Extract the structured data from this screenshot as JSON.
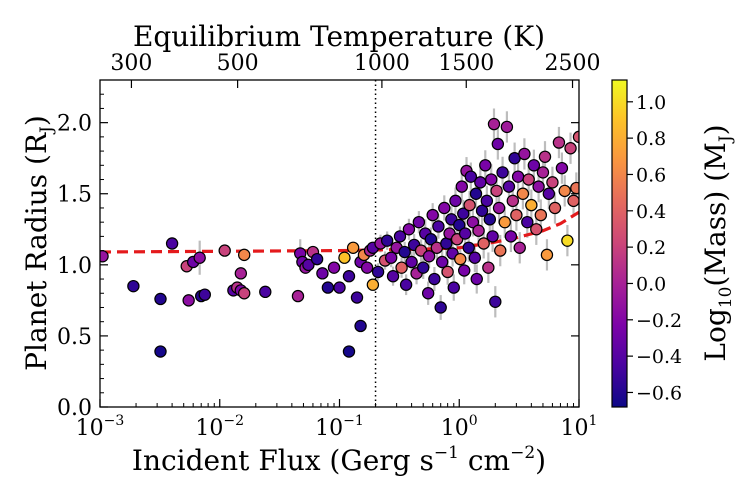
{
  "chart_data": {
    "type": "scatter",
    "title": "",
    "xlabel": "Incident Flux (Gerg s",
    "xlabel_sup1": "−1",
    "xlabel_mid": " cm",
    "xlabel_sup2": "−2",
    "xlabel_end": ")",
    "ylabel": "Planet Radius (R",
    "ylabel_sub": "J",
    "ylabel_end": ")",
    "top_xlabel": "Equilibrium Temperature (K)",
    "colorbar_label": "Log",
    "colorbar_label_sub": "10",
    "colorbar_label_mid": "(Mass) (M",
    "colorbar_label_sub2": "J",
    "colorbar_label_end": ")",
    "x_scale": "log",
    "xlim": [
      0.001,
      10
    ],
    "ylim": [
      0.0,
      2.3
    ],
    "x_ticks": [
      {
        "value": 0.001,
        "base": "10",
        "exp": "−3"
      },
      {
        "value": 0.01,
        "base": "10",
        "exp": "−2"
      },
      {
        "value": 0.1,
        "base": "10",
        "exp": "−1"
      },
      {
        "value": 1,
        "base": "10",
        "exp": "0"
      },
      {
        "value": 10,
        "base": "10",
        "exp": "1"
      }
    ],
    "y_ticks": [
      "0.0",
      "0.5",
      "1.0",
      "1.5",
      "2.0"
    ],
    "top_ticks": [
      {
        "label": "300",
        "flux": 0.00183
      },
      {
        "label": "500",
        "flux": 0.0141
      },
      {
        "label": "1000",
        "flux": 0.226
      },
      {
        "label": "1500",
        "flux": 1.1443
      },
      {
        "label": "2500",
        "flux": 8.829
      }
    ],
    "colorbar_range": [
      -0.68,
      1.12
    ],
    "colorbar_ticks": [
      "−0.6",
      "−0.4",
      "−0.2",
      "0.0",
      "0.2",
      "0.4",
      "0.6",
      "0.8",
      "1.0"
    ],
    "colormap": "plasma",
    "vertical_line": {
      "x": 0.2,
      "style": "dotted",
      "color": "#000000"
    },
    "fit_curve": {
      "color": "#e41a1c",
      "style": "dashed",
      "x": [
        0.001,
        0.01,
        0.1,
        0.2,
        0.5,
        1,
        2,
        3,
        5,
        7,
        10
      ],
      "y": [
        1.09,
        1.095,
        1.1,
        1.105,
        1.11,
        1.12,
        1.16,
        1.19,
        1.24,
        1.29,
        1.37
      ]
    },
    "points": [
      {
        "x": 0.00105,
        "y": 1.06,
        "c": -0.1
      },
      {
        "x": 0.0019,
        "y": 0.85,
        "c": -0.55
      },
      {
        "x": 0.0032,
        "y": 0.76,
        "c": -0.6
      },
      {
        "x": 0.0032,
        "y": 0.39,
        "c": -0.65
      },
      {
        "x": 0.004,
        "y": 1.15,
        "c": -0.45
      },
      {
        "x": 0.0053,
        "y": 0.99,
        "c": 0.2
      },
      {
        "x": 0.0055,
        "y": 0.75,
        "c": -0.15
      },
      {
        "x": 0.006,
        "y": 1.02,
        "c": -0.3
      },
      {
        "x": 0.0068,
        "y": 1.05,
        "c": -0.15,
        "e": 0.12
      },
      {
        "x": 0.007,
        "y": 0.78,
        "c": -0.6
      },
      {
        "x": 0.0075,
        "y": 0.79,
        "c": -0.5
      },
      {
        "x": 0.011,
        "y": 1.1,
        "c": 0.2
      },
      {
        "x": 0.013,
        "y": 0.82,
        "c": -0.4
      },
      {
        "x": 0.014,
        "y": 0.84,
        "c": 0.1
      },
      {
        "x": 0.015,
        "y": 0.94,
        "c": 0.0
      },
      {
        "x": 0.015,
        "y": 0.82,
        "c": -0.2
      },
      {
        "x": 0.016,
        "y": 1.07,
        "c": 0.6
      },
      {
        "x": 0.016,
        "y": 0.8,
        "c": 0.2
      },
      {
        "x": 0.024,
        "y": 0.81,
        "c": -0.45
      },
      {
        "x": 0.045,
        "y": 0.78,
        "c": 0.0
      },
      {
        "x": 0.047,
        "y": 1.08,
        "c": -0.25,
        "e": 0.1
      },
      {
        "x": 0.049,
        "y": 1.02,
        "c": -0.3
      },
      {
        "x": 0.052,
        "y": 0.98,
        "c": -0.1
      },
      {
        "x": 0.055,
        "y": 1.0,
        "c": -0.4
      },
      {
        "x": 0.06,
        "y": 1.09,
        "c": 0.1
      },
      {
        "x": 0.065,
        "y": 1.04,
        "c": -0.55
      },
      {
        "x": 0.072,
        "y": 0.94,
        "c": -0.3
      },
      {
        "x": 0.08,
        "y": 0.84,
        "c": -0.6
      },
      {
        "x": 0.09,
        "y": 0.98,
        "c": -0.2
      },
      {
        "x": 0.1,
        "y": 0.84,
        "c": -0.45
      },
      {
        "x": 0.11,
        "y": 1.05,
        "c": 0.9
      },
      {
        "x": 0.12,
        "y": 0.39,
        "c": -0.65
      },
      {
        "x": 0.12,
        "y": 0.92,
        "c": -0.5
      },
      {
        "x": 0.13,
        "y": 1.12,
        "c": 0.7
      },
      {
        "x": 0.14,
        "y": 0.77,
        "c": -0.5
      },
      {
        "x": 0.15,
        "y": 0.57,
        "c": -0.6
      },
      {
        "x": 0.15,
        "y": 1.02,
        "c": -0.3
      },
      {
        "x": 0.16,
        "y": 1.07,
        "c": 0.6
      },
      {
        "x": 0.17,
        "y": 0.98,
        "c": -0.2
      },
      {
        "x": 0.18,
        "y": 1.1,
        "c": 0.0
      },
      {
        "x": 0.19,
        "y": 0.86,
        "c": 0.8
      },
      {
        "x": 0.19,
        "y": 1.12,
        "c": -0.4
      },
      {
        "x": 0.21,
        "y": 0.95,
        "c": -0.55
      },
      {
        "x": 0.22,
        "y": 1.15,
        "c": -0.1
      },
      {
        "x": 0.24,
        "y": 1.03,
        "c": 0.3
      },
      {
        "x": 0.25,
        "y": 1.17,
        "c": -0.55
      },
      {
        "x": 0.27,
        "y": 1.05,
        "c": -0.25
      },
      {
        "x": 0.28,
        "y": 0.92,
        "c": -0.4
      },
      {
        "x": 0.3,
        "y": 1.12,
        "c": -0.1
      },
      {
        "x": 0.32,
        "y": 1.2,
        "c": -0.45
      },
      {
        "x": 0.33,
        "y": 0.98,
        "c": 0.4
      },
      {
        "x": 0.35,
        "y": 1.09,
        "c": -0.6
      },
      {
        "x": 0.36,
        "y": 0.86,
        "c": -0.45
      },
      {
        "x": 0.38,
        "y": 1.25,
        "c": -0.2
      },
      {
        "x": 0.4,
        "y": 1.02,
        "c": -0.35
      },
      {
        "x": 0.42,
        "y": 1.14,
        "c": -0.5
      },
      {
        "x": 0.44,
        "y": 0.94,
        "c": 0.0
      },
      {
        "x": 0.46,
        "y": 1.3,
        "c": -0.3
      },
      {
        "x": 0.48,
        "y": 1.1,
        "c": 0.2
      },
      {
        "x": 0.5,
        "y": 0.98,
        "c": -0.55
      },
      {
        "x": 0.52,
        "y": 1.22,
        "c": -0.4,
        "e": 0.1
      },
      {
        "x": 0.55,
        "y": 0.8,
        "c": -0.3
      },
      {
        "x": 0.56,
        "y": 1.06,
        "c": -0.15
      },
      {
        "x": 0.58,
        "y": 1.18,
        "c": -0.6
      },
      {
        "x": 0.6,
        "y": 1.35,
        "c": -0.2
      },
      {
        "x": 0.62,
        "y": 0.9,
        "c": -0.5
      },
      {
        "x": 0.65,
        "y": 1.12,
        "c": 0.1
      },
      {
        "x": 0.67,
        "y": 1.27,
        "c": -0.45
      },
      {
        "x": 0.7,
        "y": 0.7,
        "c": -0.55
      },
      {
        "x": 0.72,
        "y": 1.02,
        "c": -0.3
      },
      {
        "x": 0.75,
        "y": 1.4,
        "c": -0.2
      },
      {
        "x": 0.78,
        "y": 1.15,
        "c": -0.55
      },
      {
        "x": 0.8,
        "y": 0.95,
        "c": 0.3
      },
      {
        "x": 0.83,
        "y": 1.22,
        "c": -0.1
      },
      {
        "x": 0.86,
        "y": 1.32,
        "c": -0.5
      },
      {
        "x": 0.88,
        "y": 1.08,
        "c": -0.35
      },
      {
        "x": 0.9,
        "y": 0.84,
        "c": -0.45
      },
      {
        "x": 0.93,
        "y": 1.45,
        "c": -0.3
      },
      {
        "x": 0.96,
        "y": 1.18,
        "c": 0.2
      },
      {
        "x": 1.0,
        "y": 1.28,
        "c": -0.6
      },
      {
        "x": 1.02,
        "y": 1.04,
        "c": 0.6
      },
      {
        "x": 1.05,
        "y": 1.55,
        "c": -0.2
      },
      {
        "x": 1.08,
        "y": 1.36,
        "c": -0.5
      },
      {
        "x": 1.1,
        "y": 0.96,
        "c": -0.25
      },
      {
        "x": 1.12,
        "y": 1.22,
        "c": -0.4
      },
      {
        "x": 1.15,
        "y": 1.66,
        "c": -0.1
      },
      {
        "x": 1.2,
        "y": 1.12,
        "c": -0.55
      },
      {
        "x": 1.22,
        "y": 1.42,
        "c": 0.3
      },
      {
        "x": 1.25,
        "y": 1.62,
        "c": -0.45
      },
      {
        "x": 1.3,
        "y": 1.3,
        "c": -0.15
      },
      {
        "x": 1.35,
        "y": 1.05,
        "c": -0.4
      },
      {
        "x": 1.38,
        "y": 1.5,
        "c": -0.6
      },
      {
        "x": 1.4,
        "y": 0.9,
        "c": -0.3
      },
      {
        "x": 1.45,
        "y": 1.24,
        "c": 0.0
      },
      {
        "x": 1.5,
        "y": 1.58,
        "c": -0.35
      },
      {
        "x": 1.55,
        "y": 1.38,
        "c": -0.55
      },
      {
        "x": 1.6,
        "y": 1.15,
        "c": 0.4
      },
      {
        "x": 1.65,
        "y": 1.7,
        "c": -0.25
      },
      {
        "x": 1.7,
        "y": 1.45,
        "c": -0.45
      },
      {
        "x": 1.75,
        "y": 0.98,
        "c": 0.1
      },
      {
        "x": 1.8,
        "y": 1.32,
        "c": -0.6
      },
      {
        "x": 1.85,
        "y": 1.6,
        "c": -0.2
      },
      {
        "x": 1.9,
        "y": 1.2,
        "c": -0.35
      },
      {
        "x": 1.95,
        "y": 1.99,
        "c": 0.0
      },
      {
        "x": 2.0,
        "y": 0.74,
        "c": -0.5
      },
      {
        "x": 2.05,
        "y": 1.52,
        "c": 0.2
      },
      {
        "x": 2.1,
        "y": 1.85,
        "c": -0.3
      },
      {
        "x": 2.15,
        "y": 1.4,
        "c": -0.1
      },
      {
        "x": 2.2,
        "y": 1.1,
        "c": 0.5
      },
      {
        "x": 2.3,
        "y": 1.65,
        "c": -0.5
      },
      {
        "x": 2.4,
        "y": 1.3,
        "c": 0.7
      },
      {
        "x": 2.5,
        "y": 1.97,
        "c": -0.05
      },
      {
        "x": 2.6,
        "y": 1.55,
        "c": -0.4
      },
      {
        "x": 2.7,
        "y": 1.2,
        "c": -0.25
      },
      {
        "x": 2.8,
        "y": 1.45,
        "c": 0.1
      },
      {
        "x": 2.9,
        "y": 1.75,
        "c": -0.55
      },
      {
        "x": 3.0,
        "y": 1.35,
        "c": 0.4
      },
      {
        "x": 3.1,
        "y": 1.62,
        "c": -0.2
      },
      {
        "x": 3.2,
        "y": 1.12,
        "c": 0.0
      },
      {
        "x": 3.4,
        "y": 1.5,
        "c": 0.6
      },
      {
        "x": 3.5,
        "y": 1.78,
        "c": -0.1
      },
      {
        "x": 3.7,
        "y": 1.3,
        "c": -0.45
      },
      {
        "x": 3.8,
        "y": 1.6,
        "c": 0.2
      },
      {
        "x": 4.0,
        "y": 1.42,
        "c": 0.8
      },
      {
        "x": 4.2,
        "y": 1.7,
        "c": -0.3
      },
      {
        "x": 4.4,
        "y": 1.25,
        "c": 0.3
      },
      {
        "x": 4.6,
        "y": 1.55,
        "c": -0.15
      },
      {
        "x": 4.8,
        "y": 1.35,
        "c": 0.5
      },
      {
        "x": 5.0,
        "y": 1.65,
        "c": 0.0
      },
      {
        "x": 5.2,
        "y": 1.76,
        "c": 0.1
      },
      {
        "x": 5.4,
        "y": 1.07,
        "c": 0.7
      },
      {
        "x": 5.6,
        "y": 1.5,
        "c": -0.4
      },
      {
        "x": 6.0,
        "y": 1.58,
        "c": 0.2
      },
      {
        "x": 6.3,
        "y": 1.4,
        "c": 0.4
      },
      {
        "x": 6.8,
        "y": 1.86,
        "c": 0.1
      },
      {
        "x": 7.2,
        "y": 1.68,
        "c": -0.2
      },
      {
        "x": 7.6,
        "y": 1.52,
        "c": 0.6
      },
      {
        "x": 8.0,
        "y": 1.17,
        "c": 1.0
      },
      {
        "x": 8.5,
        "y": 1.82,
        "c": 0.2
      },
      {
        "x": 9.0,
        "y": 1.45,
        "c": 0.4
      },
      {
        "x": 9.5,
        "y": 1.54,
        "c": 0.5
      },
      {
        "x": 10.0,
        "y": 1.9,
        "c": 0.3
      }
    ]
  }
}
